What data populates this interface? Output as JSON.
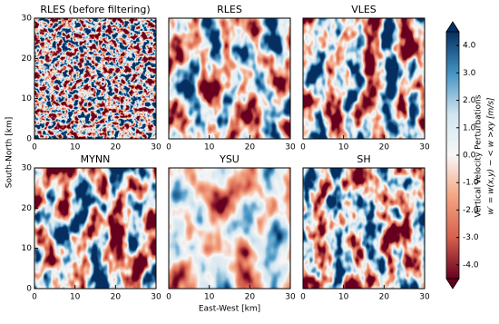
{
  "chart_data": [
    {
      "type": "heatmap",
      "title": "RLES (before filtering)",
      "xlim": [
        0,
        30
      ],
      "xticks": [
        0,
        10,
        20,
        30
      ],
      "ylim": [
        0,
        30
      ],
      "yticks": [
        0,
        10,
        20,
        30
      ]
    },
    {
      "type": "heatmap",
      "title": "RLES",
      "xlim": [
        0,
        30
      ],
      "xticks": [
        0,
        10,
        20,
        30
      ],
      "ylim": [
        0,
        30
      ]
    },
    {
      "type": "heatmap",
      "title": "VLES",
      "xlim": [
        0,
        30
      ],
      "xticks": [
        0,
        10,
        20,
        30
      ],
      "ylim": [
        0,
        30
      ]
    },
    {
      "type": "heatmap",
      "title": "MYNN",
      "xlim": [
        0,
        30
      ],
      "xticks": [
        0,
        10,
        20,
        30
      ],
      "ylim": [
        0,
        30
      ],
      "yticks": [
        0,
        10,
        20,
        30
      ]
    },
    {
      "type": "heatmap",
      "title": "YSU",
      "xlim": [
        0,
        30
      ],
      "xticks": [
        0,
        10,
        20,
        30
      ],
      "ylim": [
        0,
        30
      ]
    },
    {
      "type": "heatmap",
      "title": "SH",
      "xlim": [
        0,
        30
      ],
      "xticks": [
        0,
        10,
        20,
        30
      ],
      "ylim": [
        0,
        30
      ]
    }
  ],
  "figure": {
    "xlabel": "East-West [km]",
    "ylabel": "South-North [km]",
    "colorbar": {
      "label": "Vertical Velocity Perturbations",
      "sublabel": "w′ = w(x,y) − < w >xy [m/s]",
      "clim": [
        -4.5,
        4.5
      ],
      "colormap": [
        "#67001f",
        "#d6604d",
        "#f4a582",
        "#f7f7f7",
        "#d1e5f0",
        "#4393c3",
        "#053061"
      ],
      "ticks": [
        {
          "value": -4,
          "label": "-4.0"
        },
        {
          "value": -3,
          "label": "-3.0"
        },
        {
          "value": -2,
          "label": "-2.0"
        },
        {
          "value": -1,
          "label": "-1.0"
        },
        {
          "value": 0,
          "label": "0.0"
        },
        {
          "value": 1,
          "label": "1.0"
        },
        {
          "value": 2,
          "label": "2.0"
        },
        {
          "value": 3,
          "label": "3.0"
        },
        {
          "value": 4,
          "label": "4.0"
        }
      ]
    }
  }
}
